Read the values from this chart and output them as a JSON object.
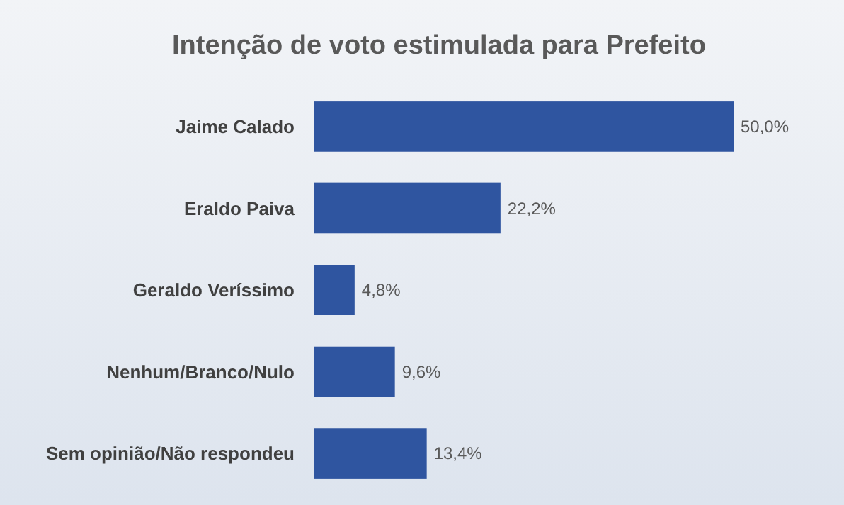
{
  "chart_data": {
    "type": "bar",
    "orientation": "horizontal",
    "title": "Intenção de voto estimulada para Prefeito",
    "categories": [
      "Jaime Calado",
      "Eraldo Paiva",
      "Geraldo Veríssimo",
      "Nenhum/Branco/Nulo",
      "Sem opinião/Não respondeu"
    ],
    "values": [
      50.0,
      22.2,
      4.8,
      9.6,
      13.4
    ],
    "value_labels": [
      "50,0%",
      "22,2%",
      "4,8%",
      "9,6%",
      "13,4%"
    ],
    "color": "#2f55a0"
  }
}
